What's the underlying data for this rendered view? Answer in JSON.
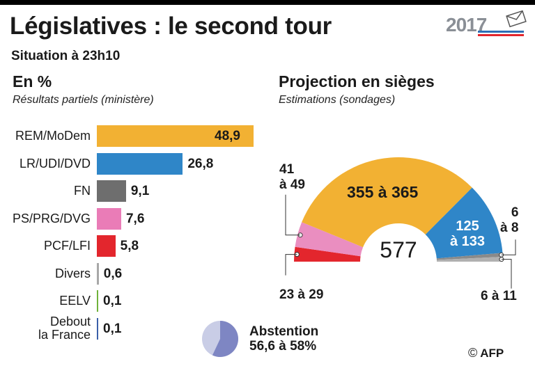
{
  "header": {
    "title": "Législatives : le second tour",
    "subtitle": "Situation à 23h10"
  },
  "logo": {
    "text": "2017",
    "colors": [
      "#2e6fb5",
      "#e3262d"
    ]
  },
  "left_panel": {
    "title": "En %",
    "subtitle": "Résultats partiels (ministère)"
  },
  "right_panel": {
    "title": "Projection en sièges",
    "subtitle": "Estimations (sondages)"
  },
  "abstention": {
    "label": "Abstention",
    "value": "56,6 à 58%",
    "share_fraction": 0.57
  },
  "credit": {
    "symbol": "©",
    "text": "AFP"
  },
  "chart_data": [
    {
      "type": "bar",
      "orientation": "horizontal",
      "categories": [
        "REM/MoDem",
        "LR/UDI/DVD",
        "FN",
        "PS/PRG/DVG",
        "PCF/LFI",
        "Divers",
        "EELV",
        "Debout la France"
      ],
      "category_lines": [
        [
          "REM/MoDem"
        ],
        [
          "LR/UDI/DVD"
        ],
        [
          "FN"
        ],
        [
          "PS/PRG/DVG"
        ],
        [
          "PCF/LFI"
        ],
        [
          "Divers"
        ],
        [
          "EELV"
        ],
        [
          "Debout",
          "la France"
        ]
      ],
      "values": [
        48.9,
        26.8,
        9.1,
        7.6,
        5.8,
        0.6,
        0.1,
        0.1
      ],
      "value_labels": [
        "48,9",
        "26,8",
        "9,1",
        "7,6",
        "5,8",
        "0,6",
        "0,1",
        "0,1"
      ],
      "colors": [
        "#f2b133",
        "#2f86c8",
        "#6e6e6e",
        "#ea7cb7",
        "#e3262d",
        "#a8a8a8",
        "#6fb23a",
        "#3a5fa8"
      ]
    },
    {
      "type": "pie",
      "variant": "hemicycle",
      "total_label": "577",
      "segments": [
        {
          "label": "23 à 29",
          "value": 26,
          "color": "#e3262d"
        },
        {
          "label": "41 à 49",
          "value": 45,
          "color": "#ea8ec0"
        },
        {
          "label": "355 à 365",
          "value": 360,
          "color": "#f2b133"
        },
        {
          "label": "125 à 133",
          "value": 129,
          "color": "#2f86c8"
        },
        {
          "label": "6 à 8",
          "value": 7,
          "color": "#8a8a8a"
        },
        {
          "label": "6 à 11",
          "value": 8.5,
          "color": "#b0b0b0"
        }
      ]
    }
  ]
}
